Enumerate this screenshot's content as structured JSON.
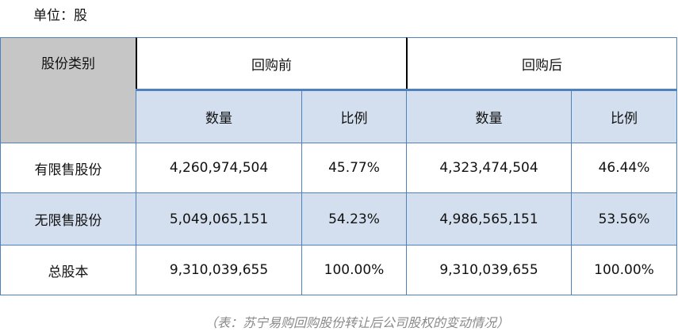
{
  "unit_label": "单位：股",
  "header": {
    "category": "股份类别",
    "before": "回购前",
    "after": "回购后",
    "qty": "数量",
    "ratio": "比例"
  },
  "rows": [
    {
      "label": "有限售股份",
      "before_qty": "4,260,974,504",
      "before_ratio": "45.77%",
      "after_qty": "4,323,474,504",
      "after_ratio": "46.44%"
    },
    {
      "label": "无限售股份",
      "before_qty": "5,049,065,151",
      "before_ratio": "54.23%",
      "after_qty": "4,986,565,151",
      "after_ratio": "53.56%"
    },
    {
      "label": "总股本",
      "before_qty": "9,310,039,655",
      "before_ratio": "100.00%",
      "after_qty": "9,310,039,655",
      "after_ratio": "100.00%"
    }
  ],
  "caption": "（表：苏宁易购回购股份转让后公司股权的变动情况）"
}
